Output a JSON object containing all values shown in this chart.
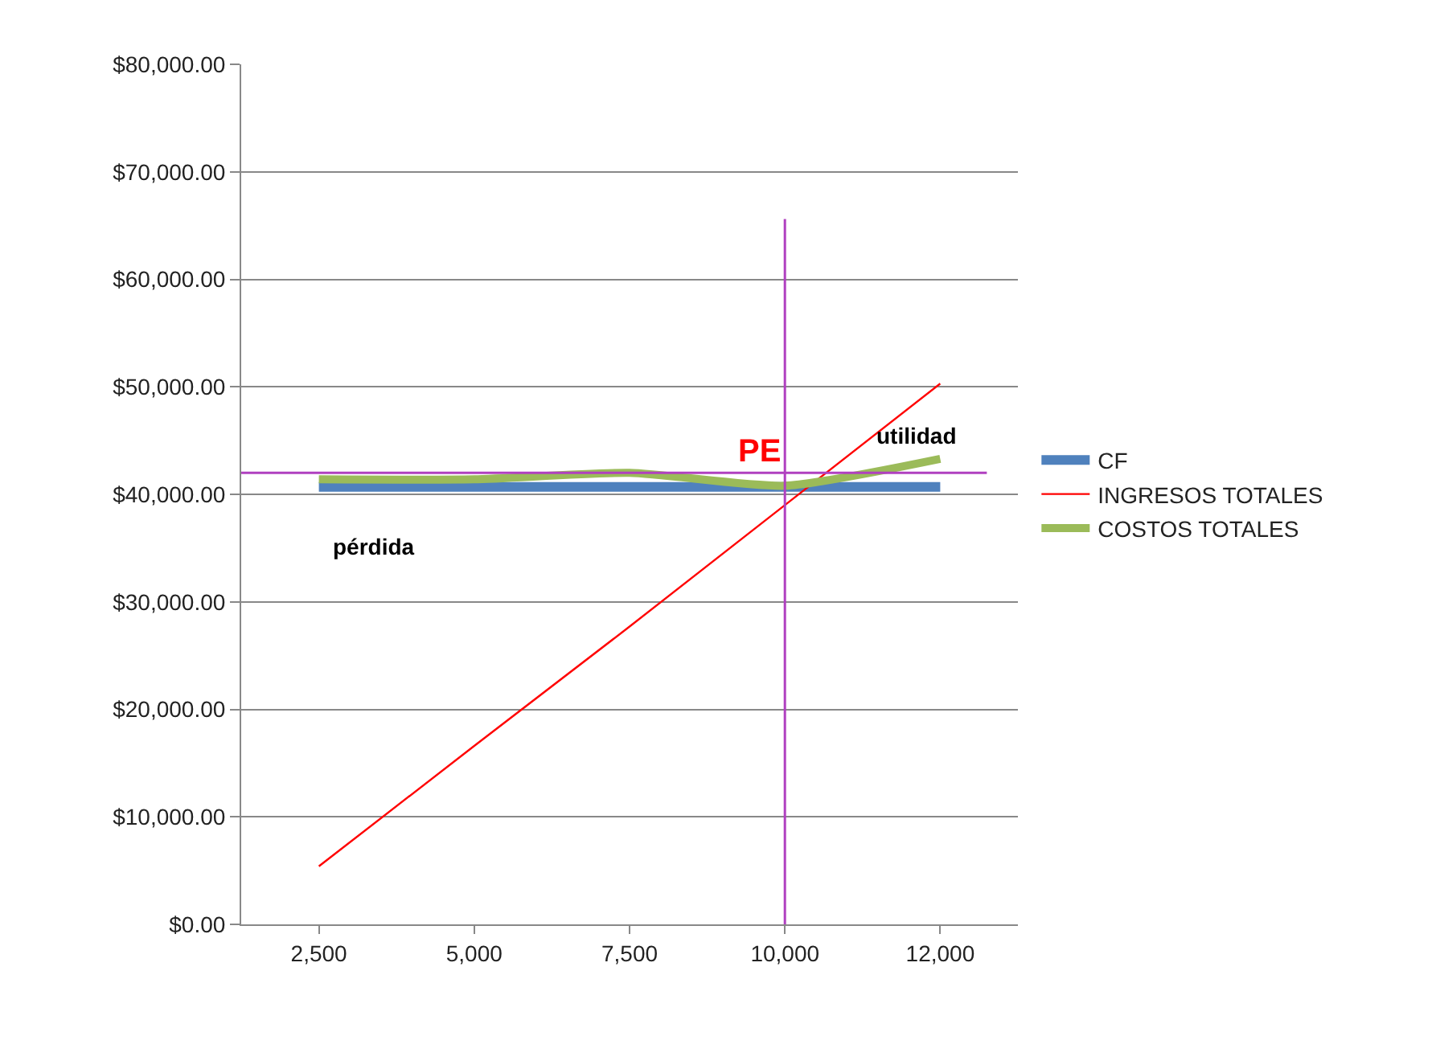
{
  "chart_data": {
    "type": "line",
    "categories": [
      "2,500",
      "5,000",
      "7,500",
      "10,000",
      "12,000"
    ],
    "series": [
      {
        "name": "CF",
        "color": "#4f81bd",
        "values": [
          40700,
          40700,
          40700,
          40700,
          40700
        ]
      },
      {
        "name": "INGRESOS TOTALES",
        "color": "#ff0000",
        "values": [
          5400,
          16600,
          27700,
          39000,
          50300
        ]
      },
      {
        "name": "COSTOS TOTALES",
        "color": "#9bbb59",
        "values": [
          41400,
          41400,
          42000,
          40800,
          43300
        ]
      }
    ],
    "ylim": [
      0,
      80000
    ],
    "yticks": [
      {
        "value": 0,
        "label": "$0.00"
      },
      {
        "value": 10000,
        "label": "$10,000.00"
      },
      {
        "value": 20000,
        "label": "$20,000.00"
      },
      {
        "value": 30000,
        "label": "$30,000.00"
      },
      {
        "value": 40000,
        "label": "$40,000.00"
      },
      {
        "value": 50000,
        "label": "$50,000.00"
      },
      {
        "value": 60000,
        "label": "$60,000.00"
      },
      {
        "value": 70000,
        "label": "$70,000.00"
      },
      {
        "value": 80000,
        "label": "$80,000.00"
      }
    ],
    "ref_lines": [
      {
        "axis": "y",
        "value": 42000,
        "color": "#b040c0"
      },
      {
        "axis": "x",
        "value": "10,000",
        "color": "#b040c0"
      }
    ],
    "annotations": [
      {
        "text": "PE",
        "x": "10,000",
        "y": 42000
      },
      "utilidad",
      "pérdida"
    ],
    "grid": "y",
    "legend": "right",
    "marker": "none",
    "line_style": "solid"
  }
}
